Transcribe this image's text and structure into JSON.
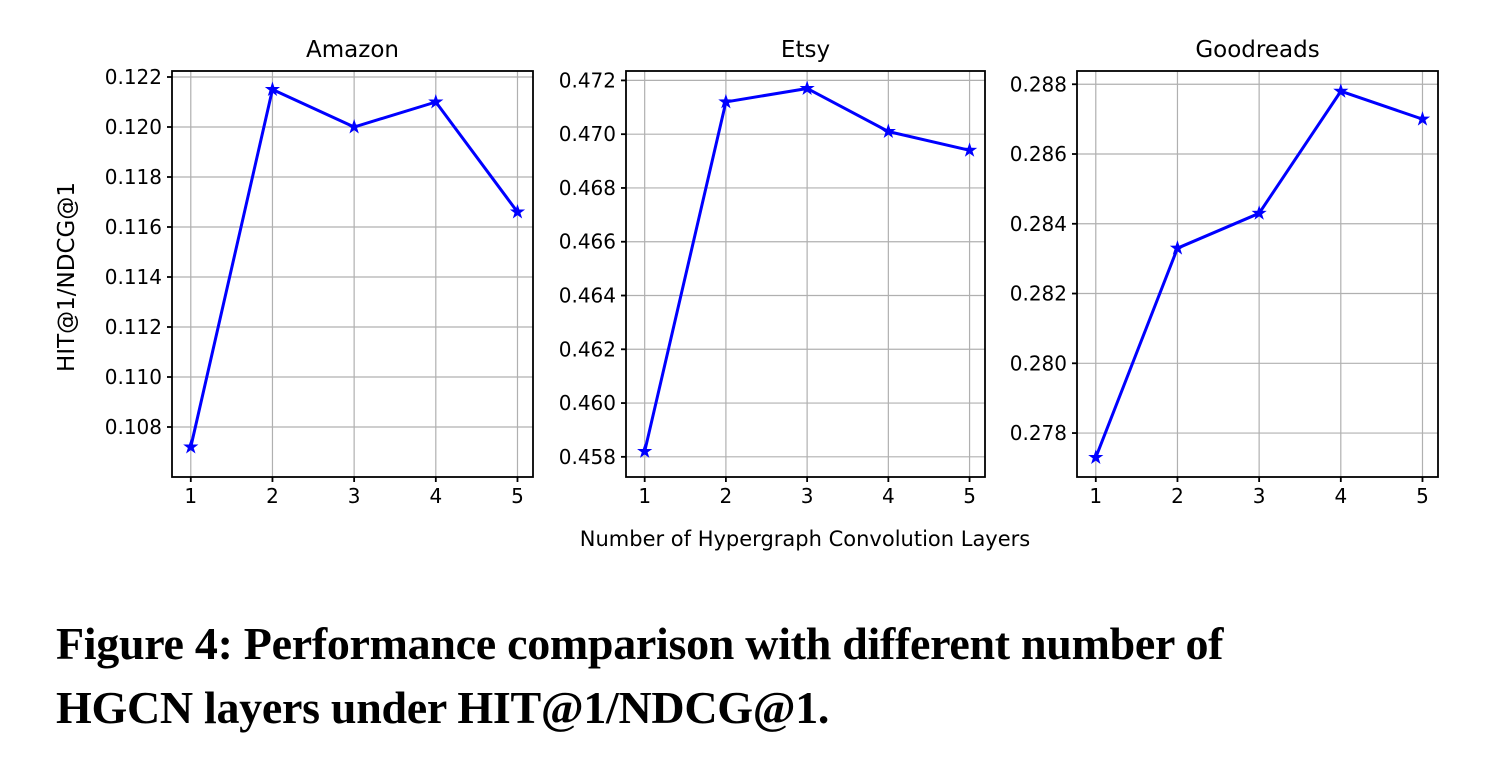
{
  "figure": {
    "x_axis_label": "Number of Hypergraph Convolution Layers",
    "y_axis_label": "HIT@1/NDCG@1"
  },
  "caption": {
    "line1": "Figure 4: Performance comparison with different number of",
    "line2": "HGCN layers under HIT@1/NDCG@1."
  },
  "colors": {
    "line": "#0000ff",
    "grid": "#b0b0b0",
    "spine": "#000000",
    "text": "#000000",
    "background": "#ffffff"
  },
  "chart_data": [
    {
      "type": "line",
      "title": "Amazon",
      "xlabel": "Number of Hypergraph Convolution Layers",
      "ylabel": "HIT@1/NDCG@1",
      "x": [
        1,
        2,
        3,
        4,
        5
      ],
      "values": [
        0.1072,
        0.1215,
        0.12,
        0.121,
        0.1166
      ],
      "xtick_labels": [
        "1",
        "2",
        "3",
        "4",
        "5"
      ],
      "yticks": [
        0.108,
        0.11,
        0.112,
        0.114,
        0.116,
        0.118,
        0.12,
        0.122
      ],
      "ytick_labels": [
        "0.108",
        "0.110",
        "0.112",
        "0.114",
        "0.116",
        "0.118",
        "0.120",
        "0.122"
      ],
      "ylim": [
        0.106,
        0.12224
      ],
      "xlim": [
        0.77,
        5.19
      ],
      "grid": true,
      "marker": "star",
      "legend_position": "none"
    },
    {
      "type": "line",
      "title": "Etsy",
      "xlabel": "Number of Hypergraph Convolution Layers",
      "ylabel": "HIT@1/NDCG@1",
      "x": [
        1,
        2,
        3,
        4,
        5
      ],
      "values": [
        0.4582,
        0.4712,
        0.4717,
        0.4701,
        0.4694
      ],
      "xtick_labels": [
        "1",
        "2",
        "3",
        "4",
        "5"
      ],
      "yticks": [
        0.458,
        0.46,
        0.462,
        0.464,
        0.466,
        0.468,
        0.47,
        0.472
      ],
      "ytick_labels": [
        "0.458",
        "0.460",
        "0.462",
        "0.464",
        "0.466",
        "0.468",
        "0.470",
        "0.472"
      ],
      "ylim": [
        0.45725,
        0.47235
      ],
      "xlim": [
        0.77,
        5.19
      ],
      "grid": true,
      "marker": "star",
      "legend_position": "none"
    },
    {
      "type": "line",
      "title": "Goodreads",
      "xlabel": "Number of Hypergraph Convolution Layers",
      "ylabel": "HIT@1/NDCG@1",
      "x": [
        1,
        2,
        3,
        4,
        5
      ],
      "values": [
        0.2773,
        0.2833,
        0.2843,
        0.2878,
        0.287
      ],
      "xtick_labels": [
        "1",
        "2",
        "3",
        "4",
        "5"
      ],
      "yticks": [
        0.278,
        0.28,
        0.282,
        0.284,
        0.286,
        0.288
      ],
      "ytick_labels": [
        "0.278",
        "0.280",
        "0.282",
        "0.284",
        "0.286",
        "0.288"
      ],
      "ylim": [
        0.27674,
        0.28838
      ],
      "xlim": [
        0.77,
        5.19
      ],
      "grid": true,
      "marker": "star",
      "legend_position": "none"
    }
  ]
}
